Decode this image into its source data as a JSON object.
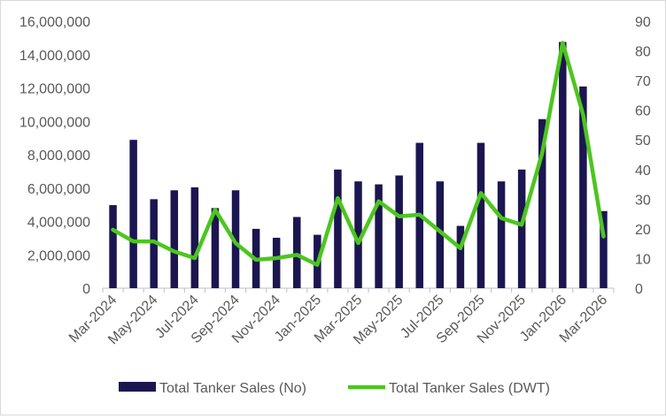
{
  "chart_data": {
    "type": "bar+line",
    "categories": [
      "Mar-2024",
      "Apr-2024",
      "May-2024",
      "Jun-2024",
      "Jul-2024",
      "Aug-2024",
      "Sep-2024",
      "Oct-2024",
      "Nov-2024",
      "Dec-2024",
      "Jan-2025",
      "Feb-2025",
      "Mar-2025",
      "Apr-2025",
      "May-2025",
      "Jun-2025",
      "Jul-2025",
      "Aug-2025",
      "Sep-2025",
      "Oct-2025",
      "Nov-2025",
      "Dec-2025",
      "Jan-2026",
      "Feb-2026",
      "Mar-2026"
    ],
    "x_tick_labels": [
      "Mar-2024",
      "May-2024",
      "Jul-2024",
      "Sep-2024",
      "Nov-2024",
      "Jan-2025",
      "Mar-2025",
      "May-2025",
      "Jul-2025",
      "Sep-2025",
      "Nov-2025",
      "Jan-2026",
      "Mar-2026"
    ],
    "series": [
      {
        "name": "Total Tanker Sales (No)",
        "type": "bar",
        "axis": "right",
        "color": "#1b1650",
        "values": [
          28,
          50,
          30,
          33,
          34,
          27,
          33,
          20,
          17,
          24,
          18,
          40,
          36,
          35,
          38,
          49,
          36,
          21,
          49,
          36,
          40,
          57,
          83,
          68,
          26
        ]
      },
      {
        "name": "Total Tanker Sales (DWT)",
        "type": "line",
        "axis": "left",
        "color": "#4cc61e",
        "values": [
          3500000,
          2800000,
          2800000,
          2200000,
          1800000,
          4700000,
          2700000,
          1700000,
          1800000,
          2000000,
          1400000,
          5400000,
          2700000,
          5200000,
          4300000,
          4400000,
          3400000,
          2400000,
          5700000,
          4200000,
          3800000,
          8100000,
          14700000,
          10400000,
          3100000
        ]
      }
    ],
    "y_left": {
      "min": 0,
      "max": 16000000,
      "step": 2000000,
      "tick_labels": [
        "0",
        "2,000,000",
        "4,000,000",
        "6,000,000",
        "8,000,000",
        "10,000,000",
        "12,000,000",
        "14,000,000",
        "16,000,000"
      ]
    },
    "y_right": {
      "min": 0,
      "max": 90,
      "step": 10,
      "tick_labels": [
        "0",
        "10",
        "20",
        "30",
        "40",
        "50",
        "60",
        "70",
        "80",
        "90"
      ]
    },
    "grid": false,
    "legend_position": "bottom"
  }
}
